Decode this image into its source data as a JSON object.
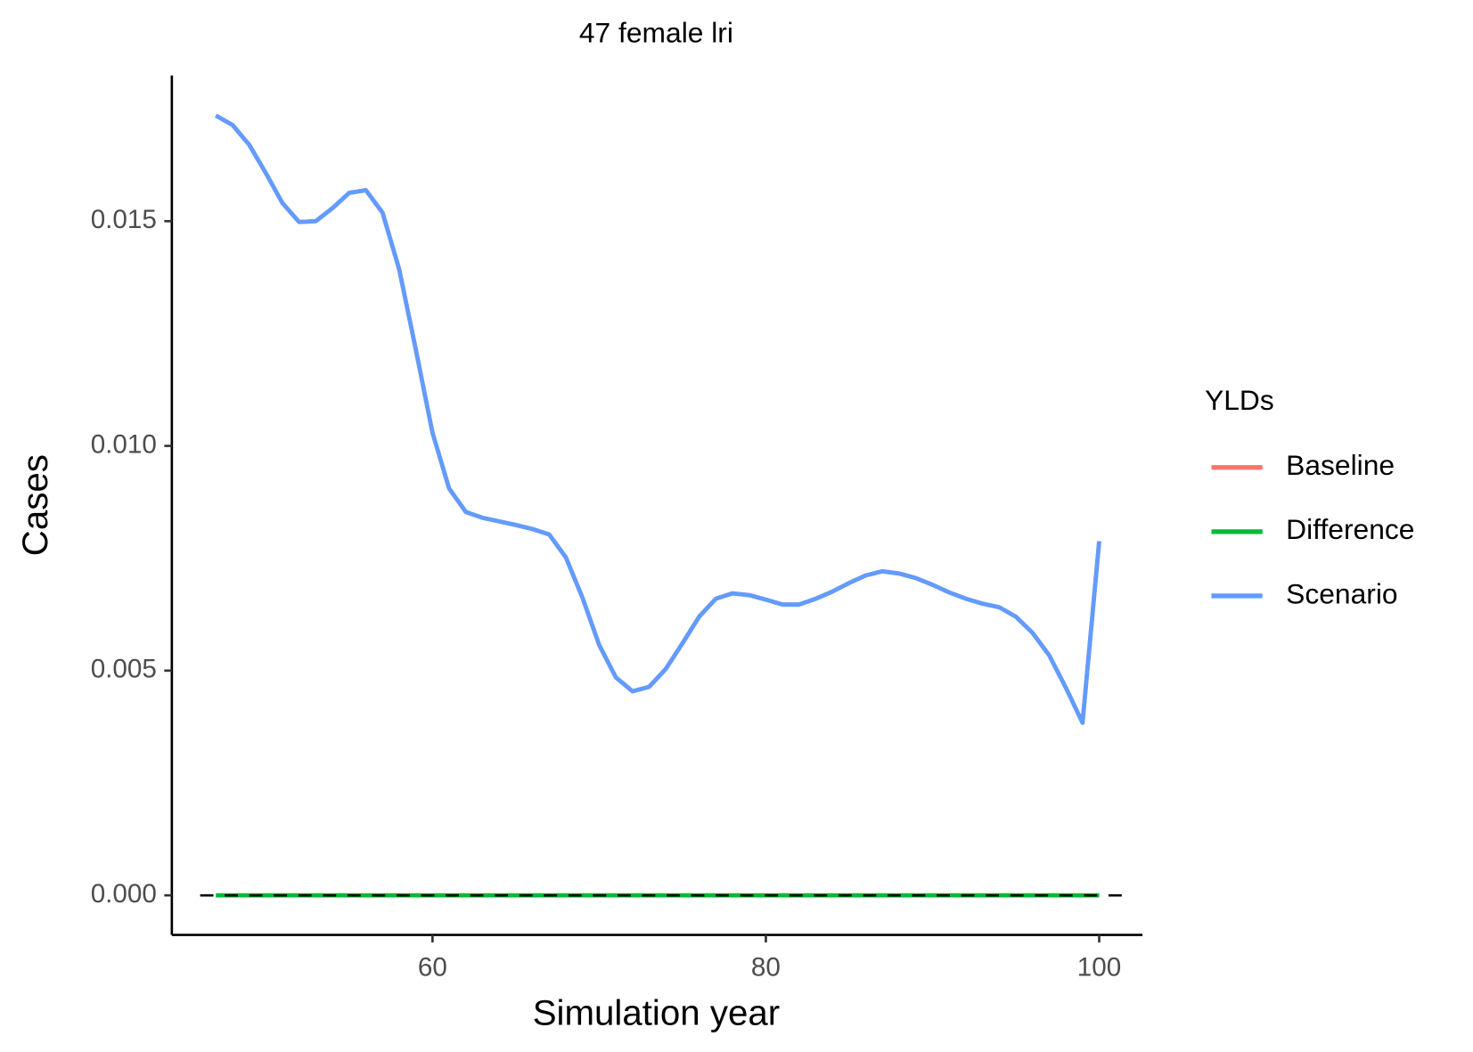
{
  "chart_data": {
    "type": "line",
    "title": "47 female lri",
    "x_label": "Simulation year",
    "y_label": "Cases",
    "legend_title": "YLDs",
    "legend": "right",
    "x": [
      47,
      48,
      49,
      50,
      51,
      52,
      53,
      54,
      55,
      56,
      57,
      58,
      59,
      60,
      61,
      62,
      63,
      64,
      65,
      66,
      67,
      68,
      69,
      70,
      71,
      72,
      73,
      74,
      75,
      76,
      77,
      78,
      79,
      80,
      81,
      82,
      83,
      84,
      85,
      86,
      87,
      88,
      89,
      90,
      91,
      92,
      93,
      94,
      95,
      96,
      97,
      98,
      99,
      100
    ],
    "series": [
      {
        "name": "Baseline",
        "color": "#f8766d",
        "values": [
          0.01735,
          0.01714,
          0.0167,
          0.01607,
          0.0154,
          0.01498,
          0.015,
          0.01529,
          0.01563,
          0.01569,
          0.01519,
          0.01393,
          0.01214,
          0.01029,
          0.00905,
          0.00853,
          0.0084,
          0.00832,
          0.00824,
          0.00815,
          0.00803,
          0.00752,
          0.00662,
          0.00557,
          0.00485,
          0.00454,
          0.00464,
          0.00504,
          0.00561,
          0.0062,
          0.0066,
          0.00672,
          0.00668,
          0.00658,
          0.00647,
          0.00647,
          0.0066,
          0.00676,
          0.00695,
          0.00712,
          0.00721,
          0.00716,
          0.00706,
          0.00691,
          0.00674,
          0.0066,
          0.00649,
          0.00641,
          0.0062,
          0.00584,
          0.00534,
          0.00462,
          0.00384,
          0.00788
        ]
      },
      {
        "name": "Difference",
        "color": "#00ba38",
        "values": [
          0,
          0,
          0,
          0,
          0,
          0,
          0,
          0,
          0,
          0,
          0,
          0,
          0,
          0,
          0,
          0,
          0,
          0,
          0,
          0,
          0,
          0,
          0,
          0,
          0,
          0,
          0,
          0,
          0,
          0,
          0,
          0,
          0,
          0,
          0,
          0,
          0,
          0,
          0,
          0,
          0,
          0,
          0,
          0,
          0,
          0,
          0,
          0,
          0,
          0,
          0,
          0,
          0,
          0
        ]
      },
      {
        "name": "Scenario",
        "color": "#619cff",
        "values": [
          0.01735,
          0.01714,
          0.0167,
          0.01607,
          0.0154,
          0.01498,
          0.015,
          0.01529,
          0.01563,
          0.01569,
          0.01519,
          0.01393,
          0.01214,
          0.01029,
          0.00905,
          0.00853,
          0.0084,
          0.00832,
          0.00824,
          0.00815,
          0.00803,
          0.00752,
          0.00662,
          0.00557,
          0.00485,
          0.00454,
          0.00464,
          0.00504,
          0.00561,
          0.0062,
          0.0066,
          0.00672,
          0.00668,
          0.00658,
          0.00647,
          0.00647,
          0.0066,
          0.00676,
          0.00695,
          0.00712,
          0.00721,
          0.00716,
          0.00706,
          0.00691,
          0.00674,
          0.0066,
          0.00649,
          0.00641,
          0.0062,
          0.00584,
          0.00534,
          0.00462,
          0.00384,
          0.00788
        ]
      }
    ],
    "reference_line": 0,
    "xlim": [
      44.36,
      102.6
    ],
    "ylim": [
      -0.00088,
      0.01824
    ],
    "xticks": [
      60,
      80,
      100
    ],
    "yticks": [
      {
        "value": 0,
        "label": "0.000"
      },
      0.005,
      {
        "value": 0.01,
        "label": "0.010"
      },
      0.015
    ]
  }
}
